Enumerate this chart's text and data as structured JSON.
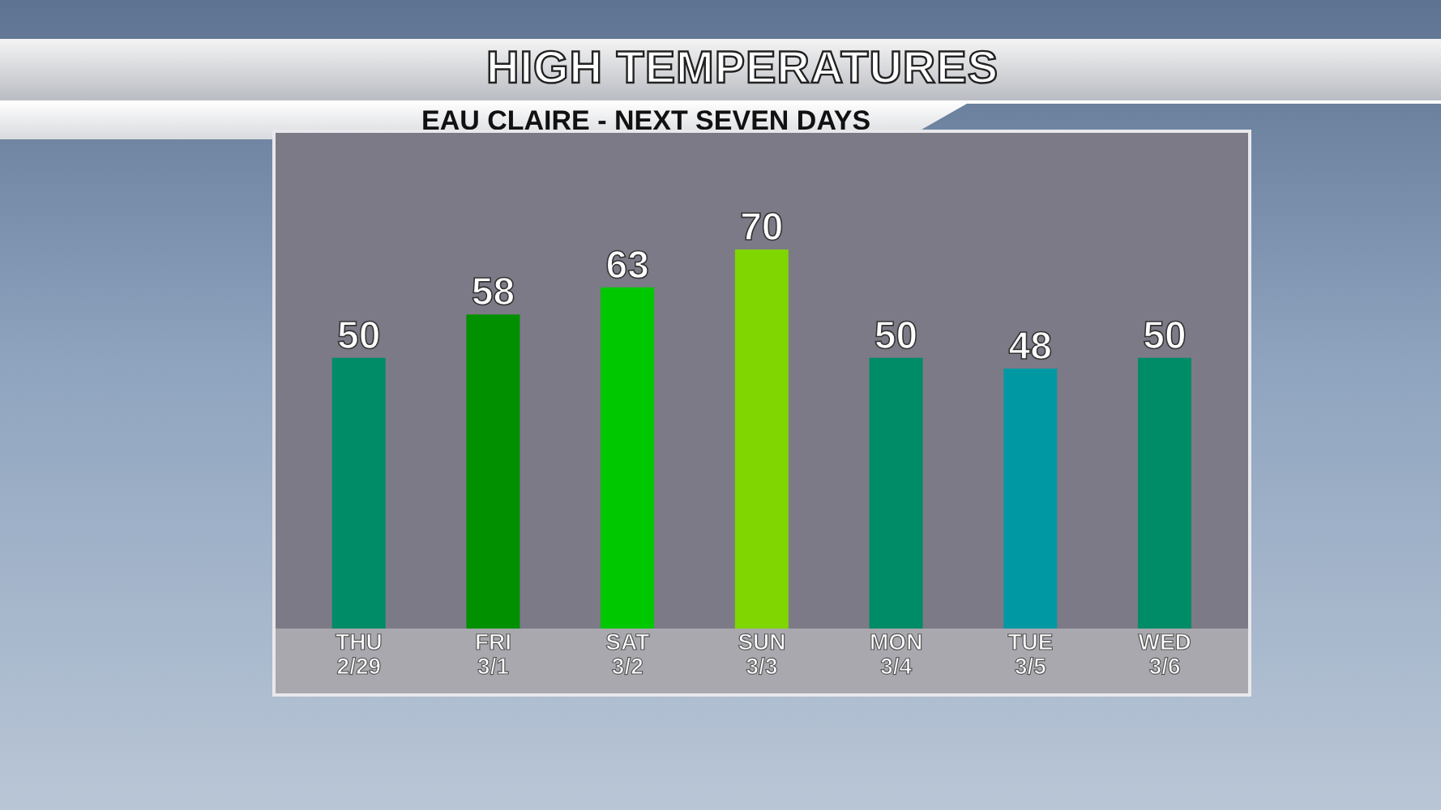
{
  "chart_data": {
    "type": "bar",
    "title": "HIGH TEMPERATURES",
    "subtitle": "EAU CLAIRE - NEXT SEVEN DAYS",
    "categories": [
      "THU 2/29",
      "FRI 3/1",
      "SAT 3/2",
      "SUN 3/3",
      "MON 3/4",
      "TUE 3/5",
      "WED 3/6"
    ],
    "values": [
      50,
      58,
      63,
      70,
      50,
      48,
      50
    ],
    "colors": [
      "#008c66",
      "#009000",
      "#00c800",
      "#7fd600",
      "#008c66",
      "#0099a3",
      "#008c66"
    ],
    "tick_labels": "x",
    "data_labels": true,
    "grid": false,
    "legend": false
  }
}
